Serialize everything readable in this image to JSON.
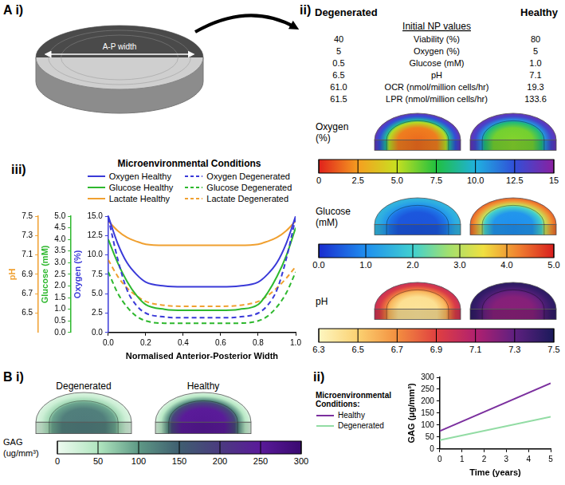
{
  "panels": {
    "a_i": {
      "label": "A i)",
      "arrow_label": "A-P width"
    },
    "a_ii": {
      "label": "ii)",
      "table": {
        "columns": [
          "Degenerated",
          "Healthy"
        ],
        "heading": "Initial NP values",
        "rows": [
          {
            "name": "Viability (%)",
            "values": [
              "40",
              "80"
            ]
          },
          {
            "name": "Oxygen (%)",
            "values": [
              "5",
              "5"
            ]
          },
          {
            "name": "Glucose (mM)",
            "values": [
              "0.5",
              "1.0"
            ]
          },
          {
            "name": "pH",
            "values": [
              "6.5",
              "7.1"
            ]
          },
          {
            "name": "OCR (nmol/million cells/hr)",
            "values": [
              "61.0",
              "19.3"
            ]
          },
          {
            "name": "LPR (nmol/million cells/hr)",
            "values": [
              "61.5",
              "133.6"
            ]
          }
        ]
      },
      "maps": [
        {
          "name": "Oxygen (%)",
          "range": [
            0,
            15
          ],
          "ticks": [
            0,
            2.5,
            {
              "value": 5,
              "label": "5.0"
            },
            7.5,
            {
              "value": 10,
              "label": "10.0"
            },
            12.5,
            15
          ],
          "discs": [
            {
              "center": 1.5,
              "rim": 14
            },
            {
              "center": 6,
              "rim": 14
            }
          ]
        },
        {
          "name": "Glucose (mM)",
          "range": [
            0,
            5
          ],
          "ticks": [
            {
              "value": 0,
              "label": "0.0"
            },
            {
              "value": 1,
              "label": "1.0"
            },
            {
              "value": 2,
              "label": "2.0"
            },
            {
              "value": 3,
              "label": "3.0"
            },
            {
              "value": 4,
              "label": "4.0"
            },
            {
              "value": 5,
              "label": "5.0"
            }
          ],
          "discs": [
            {
              "center": 0.4,
              "rim": 1.6
            },
            {
              "center": 1.0,
              "rim": 4.5
            }
          ]
        },
        {
          "name": "pH",
          "range": [
            6.3,
            7.5
          ],
          "ticks": [
            6.3,
            6.5,
            6.7,
            6.9,
            7.1,
            7.3,
            7.5
          ],
          "discs": [
            {
              "center": 6.4,
              "rim": 7.0
            },
            {
              "center": 7.2,
              "rim": 7.45
            }
          ]
        }
      ]
    },
    "a_iii": {
      "label": "iii)"
    },
    "b_i": {
      "label": "B i)",
      "map": {
        "name": "GAG (ug/mm³)",
        "range": [
          0,
          300
        ],
        "ticks": [
          0,
          50,
          100,
          150,
          200,
          250,
          300
        ],
        "discs": [
          {
            "title": "Degenerated",
            "center": 125,
            "rim": 15
          },
          {
            "title": "Healthy",
            "center": 255,
            "rim": 15
          }
        ]
      }
    },
    "b_ii": {
      "label": "ii)"
    }
  },
  "chart_data": [
    {
      "type": "line",
      "legend_title": "Microenvironmental Conditions",
      "legend": "top",
      "grid": false,
      "xlabel": "Normalised Anterior-Posterior Width",
      "x": [
        0,
        0.05,
        0.1,
        0.15,
        0.2,
        0.3,
        0.4,
        0.5,
        0.6,
        0.7,
        0.8,
        0.85,
        0.9,
        0.95,
        1
      ],
      "xlim": [
        0,
        1
      ],
      "xticks": [
        {
          "value": 0,
          "label": "0.0"
        },
        0.2,
        0.4,
        0.6,
        0.8,
        {
          "value": 1,
          "label": "1.0"
        }
      ],
      "ylabel": "Oxygen (%)",
      "ylim": [
        0,
        15
      ],
      "yticks": [
        {
          "value": 0,
          "label": "0.0"
        },
        2.5,
        {
          "value": 5,
          "label": "5.0"
        },
        7.5,
        {
          "value": 10,
          "label": "10.0"
        },
        12.5,
        {
          "value": 15,
          "label": "15.0"
        }
      ],
      "y2label": "Glucose (mM)",
      "y2lim": [
        0,
        5
      ],
      "y2ticks": [
        {
          "value": 0,
          "label": "0.0"
        },
        0.5,
        {
          "value": 1,
          "label": "1.0"
        },
        1.5,
        {
          "value": 2,
          "label": "2.0"
        },
        2.5,
        {
          "value": 3,
          "label": "3.0"
        },
        3.5,
        {
          "value": 4,
          "label": "4.0"
        },
        4.5,
        {
          "value": 5,
          "label": "5.0"
        }
      ],
      "y3label": "pH",
      "y3lim": [
        6.3,
        7.5
      ],
      "y3ticks": [
        6.5,
        6.7,
        6.9,
        7.1,
        7.3,
        7.5
      ],
      "series": [
        {
          "name": "Oxygen Healthy",
          "color": "#3a3ad8",
          "line_style": "solid",
          "values": [
            15,
            11.5,
            9,
            7.5,
            6.5,
            6.0,
            5.9,
            5.9,
            5.9,
            6.0,
            6.5,
            7.5,
            9,
            11.5,
            15
          ]
        },
        {
          "name": "Oxygen Degenerated",
          "color": "#3a3ad8",
          "line_style": "dashed",
          "values": [
            14.8,
            9.5,
            5.5,
            3.5,
            2.5,
            2.0,
            1.9,
            1.9,
            1.9,
            2.0,
            2.5,
            3.5,
            5.5,
            9.5,
            14.8
          ]
        },
        {
          "name": "Glucose Healthy",
          "color": "#2eb82e",
          "line_style": "solid",
          "axis": "y2",
          "values": [
            4.0,
            3.0,
            2.2,
            1.6,
            1.2,
            1.0,
            0.95,
            0.95,
            0.95,
            1.0,
            1.2,
            1.7,
            2.4,
            3.3,
            4.5
          ]
        },
        {
          "name": "Glucose Degenerated",
          "color": "#2eb82e",
          "line_style": "dashed",
          "axis": "y2",
          "values": [
            2.6,
            1.7,
            1.1,
            0.7,
            0.5,
            0.4,
            0.4,
            0.4,
            0.4,
            0.4,
            0.5,
            0.7,
            1.1,
            1.7,
            2.6
          ]
        },
        {
          "name": "Lactate Healthy",
          "color": "#f0a030",
          "line_style": "solid",
          "axis": "y3",
          "values": [
            7.45,
            7.35,
            7.28,
            7.24,
            7.21,
            7.2,
            7.2,
            7.2,
            7.2,
            7.2,
            7.21,
            7.24,
            7.28,
            7.35,
            7.45
          ]
        },
        {
          "name": "Lactate Degenerated",
          "color": "#f0a030",
          "line_style": "dashed",
          "axis": "y3",
          "values": [
            7.05,
            6.88,
            6.76,
            6.68,
            6.62,
            6.58,
            6.57,
            6.57,
            6.57,
            6.58,
            6.62,
            6.68,
            6.76,
            6.86,
            6.98
          ]
        }
      ]
    },
    {
      "type": "line",
      "legend_title": "Microenvironmental Conditions:",
      "legend": "left",
      "grid": false,
      "xlabel": "Time (years)",
      "x": [
        0,
        5
      ],
      "xlim": [
        0,
        5
      ],
      "xticks": [
        0,
        1,
        2,
        3,
        4,
        5
      ],
      "ylabel": "GAG (μg/mm³)",
      "ylim": [
        0,
        300
      ],
      "yticks": [
        0,
        50,
        100,
        150,
        200,
        250,
        300
      ],
      "series": [
        {
          "name": "Healthy",
          "color": "#7b2f9e",
          "line_style": "solid",
          "values": [
            75,
            275
          ]
        },
        {
          "name": "Degenerated",
          "color": "#92dca4",
          "line_style": "solid",
          "values": [
            37,
            135
          ]
        }
      ]
    }
  ]
}
